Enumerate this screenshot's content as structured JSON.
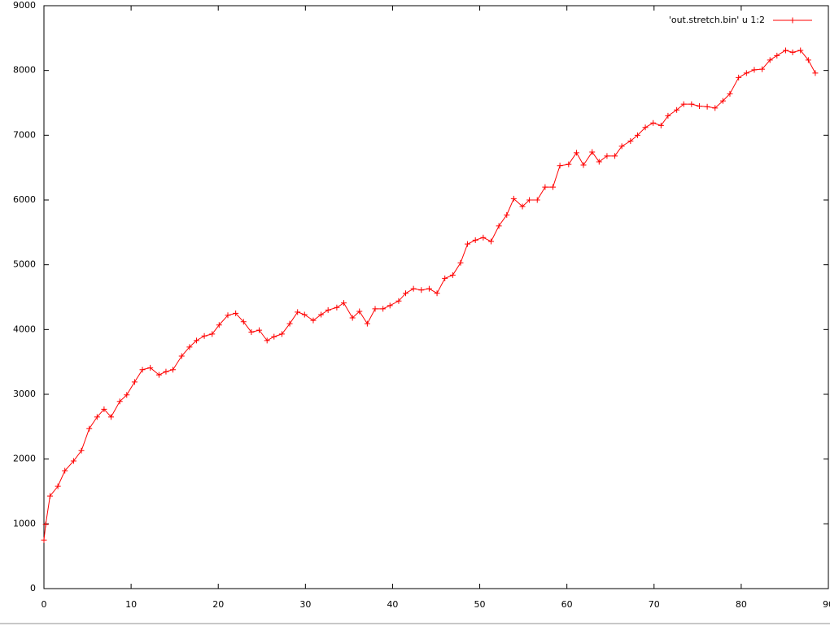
{
  "chart_data": {
    "type": "line",
    "x": [
      0,
      0.2,
      0.7,
      1.6,
      2.4,
      3.4,
      4.3,
      5.2,
      6.1,
      6.9,
      7.7,
      8.7,
      9.5,
      10.4,
      11.3,
      12.2,
      13.2,
      14.0,
      14.8,
      15.8,
      16.7,
      17.5,
      18.4,
      19.3,
      20.1,
      21.1,
      22.0,
      22.9,
      23.8,
      24.7,
      25.6,
      26.4,
      27.3,
      28.2,
      29.1,
      29.9,
      30.9,
      31.8,
      32.6,
      33.6,
      34.4,
      35.4,
      36.2,
      37.1,
      38.0,
      38.9,
      39.7,
      40.7,
      41.5,
      42.4,
      43.3,
      44.2,
      45.1,
      46.0,
      46.9,
      47.8,
      48.6,
      49.5,
      50.4,
      51.3,
      52.2,
      53.1,
      53.9,
      54.9,
      55.7,
      56.6,
      57.5,
      58.4,
      59.2,
      60.2,
      61.1,
      61.9,
      62.9,
      63.7,
      64.6,
      65.5,
      66.3,
      67.3,
      68.1,
      69.0,
      69.9,
      70.8,
      71.6,
      72.6,
      73.4,
      74.3,
      75.2,
      76.1,
      77.0,
      77.9,
      78.7,
      79.7,
      80.6,
      81.5,
      82.4,
      83.3,
      84.1,
      85.1,
      85.9,
      86.8,
      87.7,
      88.5
    ],
    "series": [
      {
        "name": "'out.stretch.bin' u 1:2",
        "color": "#ff0000",
        "values": [
          750,
          990,
          1430,
          1580,
          1820,
          1970,
          2130,
          2470,
          2650,
          2770,
          2650,
          2890,
          2990,
          3190,
          3380,
          3410,
          3300,
          3350,
          3380,
          3590,
          3730,
          3830,
          3900,
          3930,
          4070,
          4220,
          4250,
          4120,
          3960,
          3990,
          3830,
          3890,
          3930,
          4090,
          4270,
          4230,
          4140,
          4230,
          4300,
          4340,
          4410,
          4180,
          4280,
          4090,
          4320,
          4320,
          4370,
          4440,
          4560,
          4630,
          4610,
          4630,
          4560,
          4790,
          4840,
          5030,
          5320,
          5380,
          5420,
          5360,
          5600,
          5770,
          6020,
          5900,
          6000,
          6000,
          6200,
          6200,
          6530,
          6550,
          6730,
          6540,
          6740,
          6590,
          6680,
          6680,
          6830,
          6910,
          7000,
          7120,
          7190,
          7150,
          7300,
          7390,
          7480,
          7480,
          7450,
          7440,
          7420,
          7530,
          7640,
          7890,
          7960,
          8010,
          8020,
          8160,
          8230,
          8310,
          8280,
          8310,
          8160,
          7960
        ]
      }
    ],
    "xlim": [
      0,
      90
    ],
    "ylim": [
      0,
      9000
    ],
    "xticks": [
      0,
      10,
      20,
      30,
      40,
      50,
      60,
      70,
      80,
      90
    ],
    "yticks": [
      0,
      1000,
      2000,
      3000,
      4000,
      5000,
      6000,
      7000,
      8000,
      9000
    ],
    "legend": "top-right",
    "marker": "+"
  }
}
